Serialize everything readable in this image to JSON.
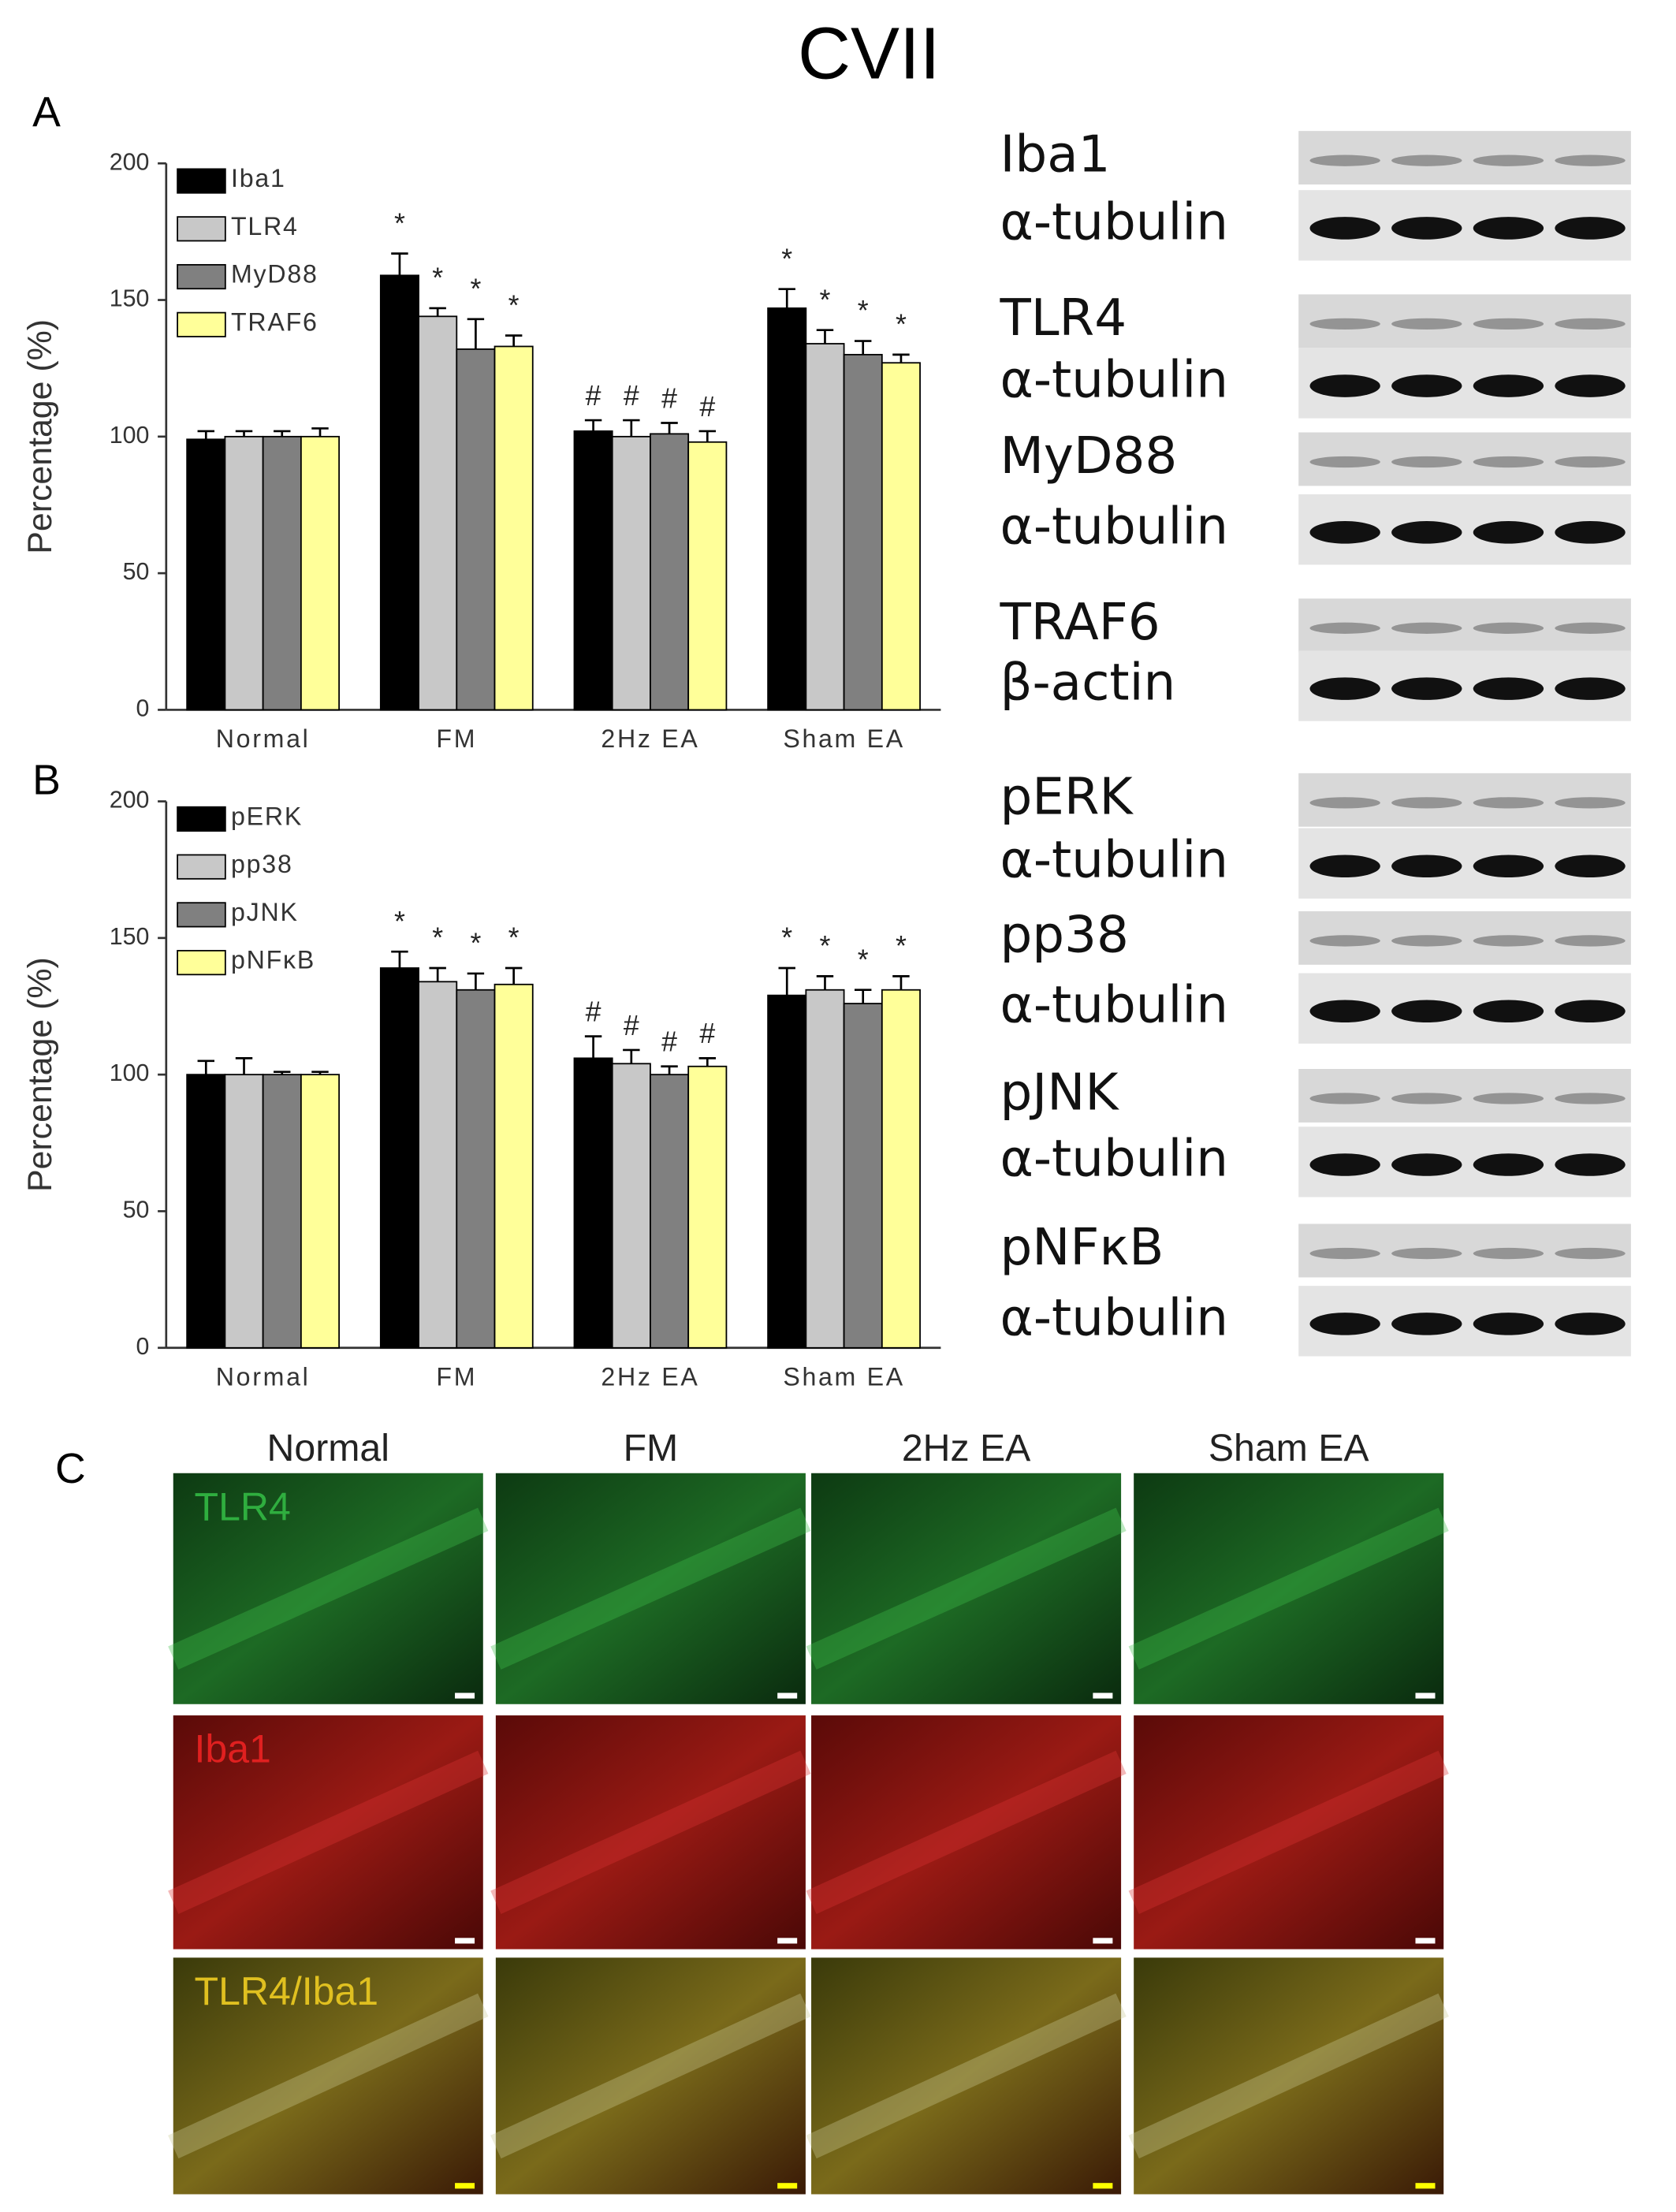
{
  "title": "CVII",
  "panels": [
    "A",
    "B",
    "C"
  ],
  "chart_data": [
    {
      "type": "bar",
      "y_label": "Percentage (%)",
      "categories": [
        "Normal",
        "FM",
        "2Hz EA",
        "Sham EA"
      ],
      "ylim": [
        0,
        200
      ],
      "yticks": [
        0,
        50,
        100,
        150,
        200
      ],
      "series": [
        {
          "name": "Iba1",
          "color": "#000000",
          "values": [
            99,
            159,
            102,
            147
          ],
          "errors": [
            3,
            8,
            4,
            7
          ],
          "sig": [
            null,
            "*",
            "#",
            "*"
          ]
        },
        {
          "name": "TLR4",
          "color": "#c8c8c8",
          "values": [
            100,
            144,
            100,
            134
          ],
          "errors": [
            2,
            3,
            6,
            5
          ],
          "sig": [
            null,
            "*",
            "#",
            "*"
          ]
        },
        {
          "name": "MyD88",
          "color": "#808080",
          "values": [
            100,
            132,
            101,
            130
          ],
          "errors": [
            2,
            11,
            4,
            5
          ],
          "sig": [
            null,
            "*",
            "#",
            "*"
          ]
        },
        {
          "name": "TRAF6",
          "color": "#ffff99",
          "values": [
            100,
            133,
            98,
            127
          ],
          "errors": [
            3,
            4,
            4,
            3
          ],
          "sig": [
            null,
            "*",
            "#",
            "*"
          ]
        }
      ]
    },
    {
      "type": "bar",
      "y_label": "Percentage (%)",
      "categories": [
        "Normal",
        "FM",
        "2Hz EA",
        "Sham EA"
      ],
      "ylim": [
        0,
        200
      ],
      "yticks": [
        0,
        50,
        100,
        150,
        200
      ],
      "series": [
        {
          "name": "pERK",
          "color": "#000000",
          "values": [
            100,
            139,
            106,
            129
          ],
          "errors": [
            5,
            6,
            8,
            10
          ],
          "sig": [
            null,
            "*",
            "#",
            "*"
          ]
        },
        {
          "name": "pp38",
          "color": "#c8c8c8",
          "values": [
            100,
            134,
            104,
            131
          ],
          "errors": [
            6,
            5,
            5,
            5
          ],
          "sig": [
            null,
            "*",
            "#",
            "*"
          ]
        },
        {
          "name": "pJNK",
          "color": "#808080",
          "values": [
            100,
            131,
            100,
            126
          ],
          "errors": [
            1,
            6,
            3,
            5
          ],
          "sig": [
            null,
            "*",
            "#",
            "*"
          ]
        },
        {
          "name": "pNFκB",
          "color": "#ffff99",
          "values": [
            100,
            133,
            103,
            131
          ],
          "errors": [
            1,
            6,
            3,
            5
          ],
          "sig": [
            null,
            "*",
            "#",
            "*"
          ]
        }
      ]
    }
  ],
  "blot_labels": [
    "Iba1",
    "α-tubulin",
    "TLR4",
    "α-tubulin",
    "MyD88",
    "α-tubulin",
    "TRAF6",
    "β-actin",
    "pERK",
    "α-tubulin",
    "pp38",
    "α-tubulin",
    "pJNK",
    "α-tubulin",
    "pNFκB",
    "α-tubulin"
  ],
  "panel_c": {
    "columns": [
      "Normal",
      "FM",
      "2Hz EA",
      "Sham EA"
    ],
    "rows": [
      "TLR4",
      "Iba1",
      "TLR4/Iba1"
    ]
  }
}
